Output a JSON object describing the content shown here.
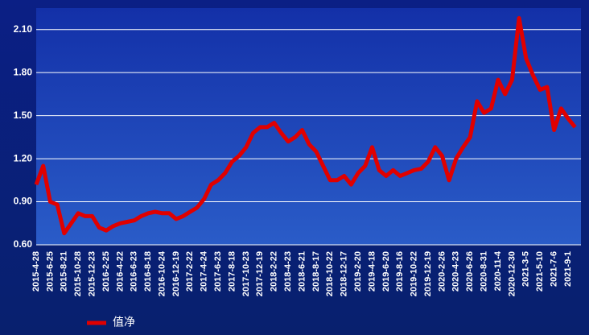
{
  "chart_data": {
    "type": "line",
    "categories": [
      "2015-4-28",
      null,
      "2015-6-25",
      null,
      "2015-8-21",
      null,
      "2015-10-28",
      null,
      "2015-12-23",
      null,
      "2016-2-25",
      null,
      "2016-4-22",
      null,
      "2016-6-23",
      null,
      "2016-8-18",
      null,
      "2016-10-24",
      null,
      "2016-12-19",
      null,
      "2017-2-22",
      null,
      "2017-4-24",
      null,
      "2017-6-23",
      null,
      "2017-8-18",
      null,
      "2017-10-23",
      null,
      "2017-12-19",
      null,
      "2018-2-22",
      null,
      "2018-4-23",
      null,
      "2018-6-21",
      null,
      "2018-8-17",
      null,
      "2018-10-22",
      null,
      "2018-12-17",
      null,
      "2019-2-20",
      null,
      "2019-4-18",
      null,
      "2019-6-20",
      null,
      "2019-8-16",
      null,
      "2019-10-22",
      null,
      "2019-12-19",
      null,
      "2020-2-26",
      null,
      "2020-4-23",
      null,
      "2020-6-26",
      null,
      "2020-8-31",
      null,
      "2020-11-4",
      null,
      "2020-12-30",
      null,
      "2021-3-5",
      null,
      "2021-5-10",
      null,
      "2021-7-6",
      null,
      "2021-9-1",
      null
    ],
    "series": [
      {
        "name": "值净",
        "color": "#e00000",
        "values": [
          1.02,
          1.15,
          0.9,
          0.88,
          0.68,
          0.75,
          0.82,
          0.8,
          0.8,
          0.72,
          0.7,
          0.73,
          0.75,
          0.76,
          0.77,
          0.8,
          0.82,
          0.83,
          0.82,
          0.82,
          0.78,
          0.8,
          0.83,
          0.86,
          0.92,
          1.02,
          1.05,
          1.1,
          1.18,
          1.22,
          1.28,
          1.38,
          1.42,
          1.42,
          1.45,
          1.38,
          1.32,
          1.35,
          1.4,
          1.3,
          1.25,
          1.15,
          1.05,
          1.05,
          1.08,
          1.02,
          1.1,
          1.15,
          1.28,
          1.12,
          1.08,
          1.12,
          1.08,
          1.1,
          1.12,
          1.13,
          1.18,
          1.28,
          1.22,
          1.05,
          1.2,
          1.28,
          1.35,
          1.6,
          1.52,
          1.55,
          1.75,
          1.65,
          1.75,
          2.18,
          1.9,
          1.78,
          1.68,
          1.7,
          1.4,
          1.55,
          1.48,
          1.42
        ]
      }
    ],
    "ylim": [
      0.6,
      2.25
    ],
    "yticks": [
      {
        "value": 0.6,
        "label": "0.60"
      },
      {
        "value": 0.9,
        "label": "0.90"
      },
      {
        "value": 1.2,
        "label": "1.20"
      },
      {
        "value": 1.5,
        "label": "1.50"
      },
      {
        "value": 1.8,
        "label": "1.80"
      },
      {
        "value": 2.1,
        "label": "2.10"
      }
    ],
    "grid": true
  }
}
